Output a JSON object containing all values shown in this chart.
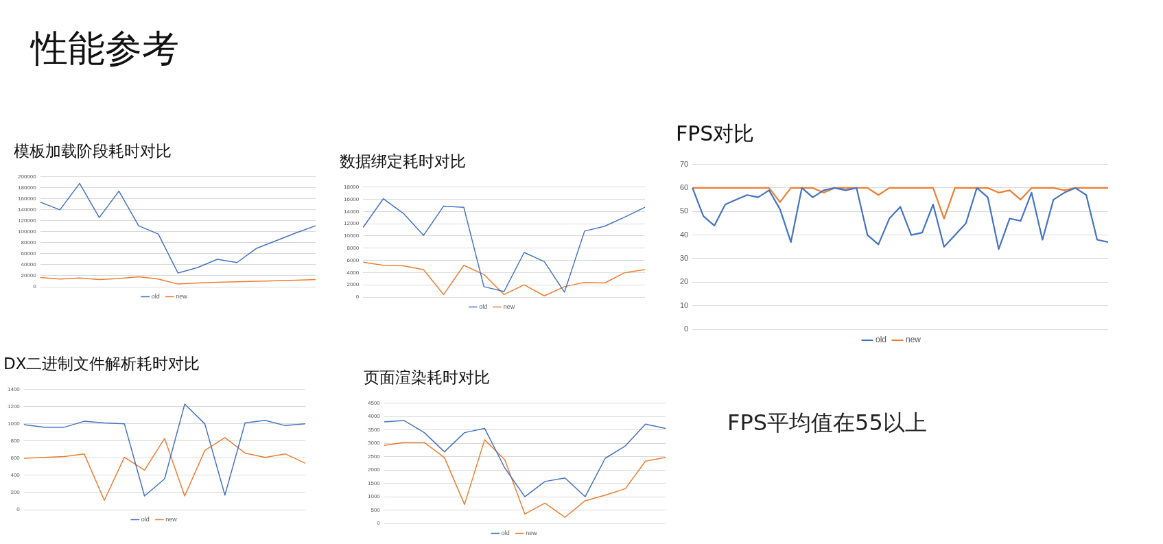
{
  "chart_data": [
    {
      "type": "other",
      "title": "性能参考"
    },
    {
      "type": "line",
      "title": "模板加载阶段耗时对比",
      "categories": [
        null,
        null,
        null,
        null,
        null,
        null,
        null,
        null,
        null,
        null,
        null,
        null,
        null,
        null,
        null
      ],
      "series": [
        {
          "name": "old",
          "color": "#4472c4",
          "values": [
            154000,
            140000,
            188000,
            126000,
            174000,
            111000,
            96000,
            25000,
            35000,
            50000,
            44000,
            70000,
            84000,
            98000,
            111000
          ]
        },
        {
          "name": "new",
          "color": "#ed7d31",
          "values": [
            17000,
            14000,
            16000,
            13000,
            15000,
            18000,
            14000,
            5000,
            7000,
            8000,
            9000,
            10000,
            11000,
            12000,
            13000
          ]
        }
      ],
      "ylim": [
        0,
        200000
      ],
      "yticks": [
        0,
        20000,
        40000,
        60000,
        80000,
        100000,
        120000,
        140000,
        160000,
        180000,
        200000
      ],
      "grid": "y",
      "legend": "bottom",
      "marker": "none",
      "line_style": "solid",
      "tick_labels": "y"
    },
    {
      "type": "line",
      "title": "数据绑定耗时对比",
      "categories": [
        null,
        null,
        null,
        null,
        null,
        null,
        null,
        null,
        null,
        null,
        null,
        null,
        null,
        null,
        null
      ],
      "series": [
        {
          "name": "old",
          "color": "#4472c4",
          "values": [
            11400,
            16100,
            13700,
            10100,
            14900,
            14700,
            1700,
            900,
            7300,
            5800,
            800,
            10800,
            11600,
            13100,
            14700
          ]
        },
        {
          "name": "new",
          "color": "#ed7d31",
          "values": [
            5700,
            5200,
            5100,
            4500,
            400,
            5200,
            3700,
            400,
            2000,
            200,
            1700,
            2400,
            2300,
            4000,
            4500
          ]
        }
      ],
      "ylim": [
        0,
        18000
      ],
      "yticks": [
        0,
        2000,
        4000,
        6000,
        8000,
        10000,
        12000,
        14000,
        16000,
        18000
      ],
      "grid": "y",
      "legend": "bottom",
      "marker": "none",
      "line_style": "solid",
      "tick_labels": "y"
    },
    {
      "type": "line",
      "title": "FPS对比",
      "categories": [
        null,
        null,
        null,
        null,
        null,
        null,
        null,
        null,
        null,
        null,
        null,
        null,
        null,
        null,
        null,
        null,
        null,
        null,
        null,
        null,
        null,
        null,
        null,
        null,
        null,
        null,
        null,
        null,
        null,
        null,
        null,
        null,
        null,
        null,
        null,
        null,
        null,
        null,
        null
      ],
      "series": [
        {
          "name": "old",
          "color": "#4472c4",
          "values": [
            60,
            48,
            44,
            53,
            55,
            57,
            56,
            59,
            51,
            37,
            60,
            56,
            59,
            60,
            59,
            60,
            40,
            36,
            47,
            52,
            40,
            41,
            53,
            35,
            40,
            45,
            60,
            56,
            34,
            47,
            46,
            58,
            38,
            55,
            58,
            60,
            57,
            38,
            37
          ]
        },
        {
          "name": "new",
          "color": "#ed7d31",
          "values": [
            60,
            60,
            60,
            60,
            60,
            60,
            60,
            60,
            54,
            60,
            60,
            60,
            58,
            60,
            60,
            60,
            60,
            57,
            60,
            60,
            60,
            60,
            60,
            47,
            60,
            60,
            60,
            60,
            58,
            59,
            55,
            60,
            60,
            60,
            59,
            60,
            60,
            60,
            60
          ]
        }
      ],
      "ylim": [
        0,
        70
      ],
      "yticks": [
        0,
        10,
        20,
        30,
        40,
        50,
        60,
        70
      ],
      "grid": "y",
      "legend": "bottom",
      "marker": "none",
      "line_style": "solid",
      "tick_labels": "y"
    },
    {
      "type": "line",
      "title": "DX二进制文件解析耗时对比",
      "categories": [
        null,
        null,
        null,
        null,
        null,
        null,
        null,
        null,
        null,
        null,
        null,
        null,
        null,
        null,
        null
      ],
      "series": [
        {
          "name": "old",
          "color": "#4472c4",
          "values": [
            990,
            960,
            960,
            1030,
            1010,
            1000,
            160,
            360,
            1230,
            1000,
            170,
            1010,
            1040,
            980,
            1000
          ]
        },
        {
          "name": "new",
          "color": "#ed7d31",
          "values": [
            600,
            610,
            620,
            650,
            110,
            610,
            460,
            830,
            160,
            690,
            840,
            660,
            610,
            650,
            540
          ]
        }
      ],
      "ylim": [
        0,
        1400
      ],
      "yticks": [
        0,
        200,
        400,
        600,
        800,
        1000,
        1200,
        1400
      ],
      "grid": "y",
      "legend": "bottom",
      "marker": "none",
      "line_style": "solid",
      "tick_labels": "y"
    },
    {
      "type": "line",
      "title": "页面渲染耗时对比",
      "categories": [
        null,
        null,
        null,
        null,
        null,
        null,
        null,
        null,
        null,
        null,
        null,
        null,
        null,
        null,
        null
      ],
      "series": [
        {
          "name": "old",
          "color": "#4472c4",
          "values": [
            3800,
            3850,
            3400,
            2680,
            3400,
            3560,
            2080,
            1000,
            1570,
            1700,
            1000,
            2440,
            2900,
            3720,
            3560
          ]
        },
        {
          "name": "new",
          "color": "#ed7d31",
          "values": [
            2920,
            3030,
            3030,
            2470,
            710,
            3130,
            2390,
            350,
            760,
            230,
            850,
            1060,
            1300,
            2330,
            2470
          ]
        }
      ],
      "ylim": [
        0,
        4500
      ],
      "yticks": [
        0,
        500,
        1000,
        1500,
        2000,
        2500,
        3000,
        3500,
        4000,
        4500
      ],
      "grid": "y",
      "legend": "bottom",
      "marker": "none",
      "line_style": "solid",
      "tick_labels": "y"
    },
    {
      "type": "other",
      "annotations": [
        "FPS平均值在55以上"
      ]
    }
  ]
}
